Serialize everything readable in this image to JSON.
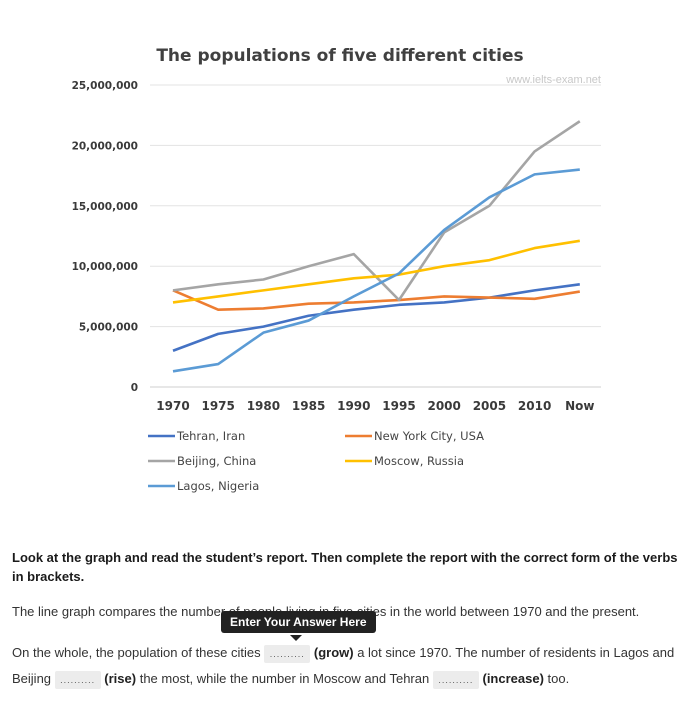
{
  "chart_data": {
    "type": "line",
    "title": "The populations of five different cities",
    "watermark": "www.ielts-exam.net",
    "categories": [
      "1970",
      "1975",
      "1980",
      "1985",
      "1990",
      "1995",
      "2000",
      "2005",
      "2010",
      "Now"
    ],
    "y_ticks": [
      "0",
      "5,000,000",
      "10,000,000",
      "15,000,000",
      "20,000,000",
      "25,000,000"
    ],
    "ylim": [
      0,
      25000000
    ],
    "grid": true,
    "legend_position": "bottom",
    "series": [
      {
        "name": "Tehran, Iran",
        "color": "#4472c4",
        "values": [
          3000000,
          4400000,
          5000000,
          5900000,
          6400000,
          6800000,
          7000000,
          7400000,
          8000000,
          8500000
        ]
      },
      {
        "name": "New York City, USA",
        "color": "#ed7d31",
        "values": [
          8000000,
          6400000,
          6500000,
          6900000,
          7000000,
          7200000,
          7500000,
          7400000,
          7300000,
          7900000
        ]
      },
      {
        "name": "Beijing, China",
        "color": "#a5a5a5",
        "values": [
          8000000,
          8500000,
          8900000,
          10000000,
          11000000,
          7200000,
          12800000,
          15000000,
          19500000,
          22000000
        ]
      },
      {
        "name": "Moscow, Russia",
        "color": "#ffc000",
        "values": [
          7000000,
          7500000,
          8000000,
          8500000,
          9000000,
          9300000,
          10000000,
          10500000,
          11500000,
          12100000
        ]
      },
      {
        "name": "Lagos, Nigeria",
        "color": "#5b9bd5",
        "values": [
          1300000,
          1900000,
          4500000,
          5500000,
          7500000,
          9400000,
          13000000,
          15700000,
          17600000,
          18000000
        ]
      }
    ]
  },
  "exercise": {
    "instruction": "Look at the graph and read the student’s report. Then complete the report with the correct form of the verbs in brackets.",
    "p1": "The line graph compares the number of people living in five cities in the world between 1970 and the present.",
    "p2_part1": "On the whole, the population of these cities",
    "blank1": "..........",
    "verb1": "(grow)",
    "p2_part2": "a lot since 1970. The number of residents in Lagos and Beijing",
    "blank2": "..........",
    "verb2": "(rise)",
    "p2_part3": "the most, while the number in Moscow and Tehran",
    "blank3": "..........",
    "verb3": "(increase)",
    "p2_part4": "too.",
    "tooltip": "Enter Your Answer Here"
  }
}
